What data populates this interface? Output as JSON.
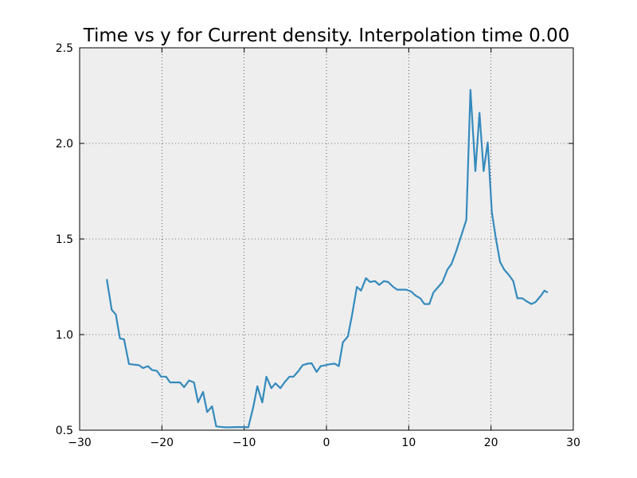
{
  "chart_data": {
    "type": "line",
    "title": "Time vs y for Current density. Interpolation time 0.00",
    "x": [
      -26.7,
      -26.1,
      -25.6,
      -25.1,
      -24.6,
      -24.0,
      -23.4,
      -22.8,
      -22.3,
      -21.7,
      -21.2,
      -20.6,
      -20.1,
      -19.5,
      -19.0,
      -18.4,
      -17.8,
      -17.3,
      -16.7,
      -16.1,
      -15.6,
      -15.0,
      -14.5,
      -13.9,
      -13.4,
      -12.8,
      -12.2,
      -11.7,
      -11.1,
      -10.6,
      -10.0,
      -9.5,
      -8.9,
      -8.4,
      -7.8,
      -7.3,
      -6.7,
      -6.2,
      -5.6,
      -5.1,
      -4.5,
      -4.0,
      -3.4,
      -2.9,
      -2.3,
      -1.8,
      -1.2,
      -0.7,
      -0.1,
      0.4,
      1.0,
      1.5,
      2.0,
      2.6,
      3.1,
      3.7,
      4.2,
      4.8,
      5.3,
      5.9,
      6.4,
      7.0,
      7.5,
      8.1,
      8.6,
      9.2,
      9.7,
      10.3,
      10.8,
      11.4,
      11.9,
      12.5,
      13.0,
      13.6,
      14.1,
      14.7,
      15.2,
      15.8,
      16.4,
      17.0,
      17.5,
      18.1,
      18.6,
      19.1,
      19.6,
      20.1,
      20.6,
      21.1,
      21.6,
      22.2,
      22.7,
      23.2,
      23.8,
      24.3,
      24.9,
      25.4,
      26.0,
      26.5,
      26.9
    ],
    "values": [
      1.29,
      1.13,
      1.105,
      0.98,
      0.975,
      0.846,
      0.843,
      0.84,
      0.825,
      0.835,
      0.815,
      0.81,
      0.78,
      0.78,
      0.75,
      0.75,
      0.75,
      0.725,
      0.76,
      0.75,
      0.646,
      0.7,
      0.595,
      0.625,
      0.52,
      0.517,
      0.515,
      0.515,
      0.516,
      0.516,
      0.516,
      0.515,
      0.62,
      0.73,
      0.645,
      0.78,
      0.72,
      0.745,
      0.72,
      0.75,
      0.78,
      0.78,
      0.81,
      0.84,
      0.848,
      0.85,
      0.805,
      0.835,
      0.84,
      0.845,
      0.848,
      0.835,
      0.96,
      0.99,
      1.1,
      1.25,
      1.23,
      1.295,
      1.275,
      1.28,
      1.26,
      1.28,
      1.275,
      1.25,
      1.235,
      1.235,
      1.235,
      1.225,
      1.205,
      1.19,
      1.16,
      1.16,
      1.22,
      1.25,
      1.275,
      1.34,
      1.37,
      1.44,
      1.52,
      1.6,
      2.28,
      1.855,
      2.16,
      1.855,
      2.005,
      1.64,
      1.5,
      1.38,
      1.34,
      1.31,
      1.28,
      1.19,
      1.19,
      1.175,
      1.16,
      1.17,
      1.2,
      1.23,
      1.22
    ],
    "color": "#348abd",
    "xlim": [
      -30,
      30
    ],
    "xticks": [
      {
        "value": -30,
        "label": "−30"
      },
      {
        "value": -20,
        "label": "−20"
      },
      {
        "value": -10,
        "label": "−10"
      },
      0,
      10,
      20,
      30
    ],
    "ylim": [
      0.5,
      2.5
    ],
    "yticks": [
      0.5,
      {
        "value": 1.0,
        "label": "1.0"
      },
      1.5,
      {
        "value": 2.0,
        "label": "2.0"
      },
      2.5
    ],
    "grid": true
  }
}
